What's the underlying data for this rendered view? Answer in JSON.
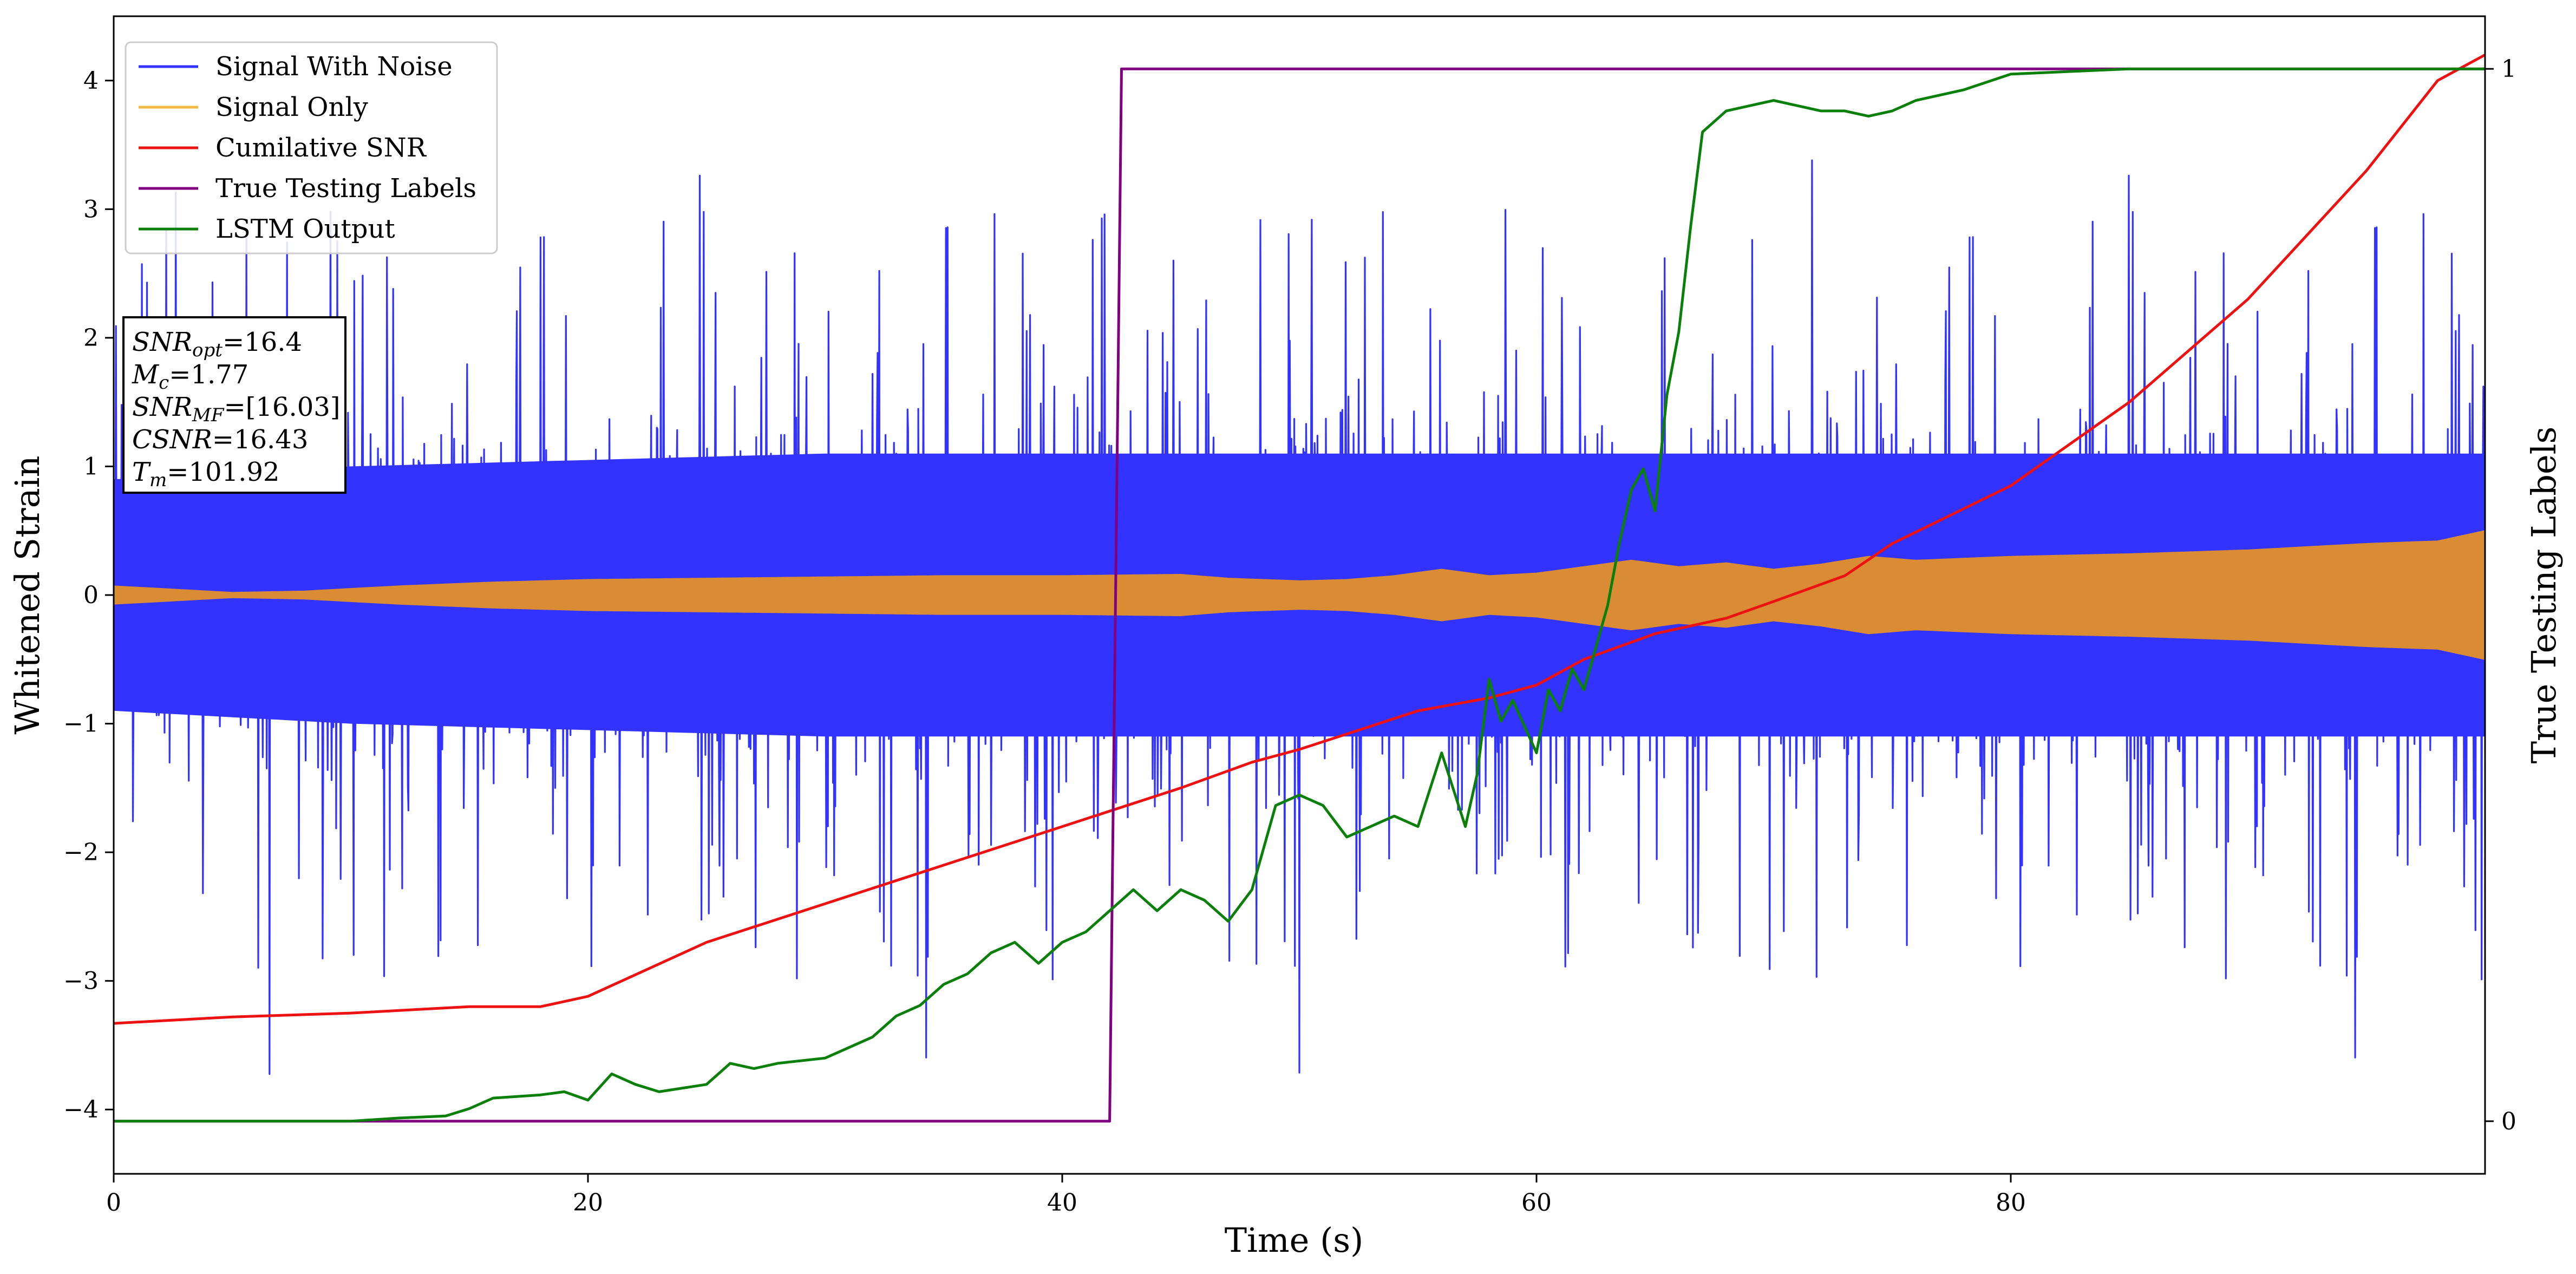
{
  "chart_data": {
    "type": "line",
    "xlabel": "Time (s)",
    "ylabel": "Whitened Strain",
    "y2label": "True Testing Labels",
    "xlim": [
      0,
      100
    ],
    "ylim": [
      -4.5,
      4.5
    ],
    "y2lim": [
      -0.05,
      1.05
    ],
    "x_ticks": [
      0,
      20,
      40,
      60,
      80
    ],
    "y_ticks": [
      -4,
      -3,
      -2,
      -1,
      0,
      1,
      2,
      3,
      4
    ],
    "y2_ticks": [
      0,
      1
    ],
    "legend_position": "upper-left",
    "colors": {
      "noise": "#3333ff",
      "signal": "#d98c33",
      "signal_legend": "#f5b841",
      "snr": "#ee1111",
      "labels": "#800080",
      "lstm": "#0a800a"
    },
    "series": [
      {
        "name": "Signal With Noise",
        "kind": "noise_band",
        "x": [
          0,
          10,
          20,
          30,
          40,
          50,
          60,
          70,
          80,
          90,
          100
        ],
        "upper_envelope": [
          2.5,
          2.8,
          2.9,
          3.0,
          3.1,
          3.1,
          3.1,
          3.1,
          3.1,
          3.0,
          3.0
        ],
        "lower_envelope": [
          -2.2,
          -2.4,
          -2.5,
          -2.6,
          -2.6,
          -2.6,
          -2.6,
          -2.6,
          -2.6,
          -2.6,
          -2.6
        ],
        "dense_band": [
          0.9,
          1.0,
          1.05,
          1.1,
          1.1,
          1.1,
          1.1,
          1.1,
          1.1,
          1.1,
          1.1
        ]
      },
      {
        "name": "Signal Only",
        "kind": "amplitude_envelope",
        "x": [
          0,
          2,
          5,
          8,
          12,
          16,
          20,
          25,
          30,
          35,
          40,
          45,
          47,
          50,
          52,
          54,
          56,
          58,
          60,
          62,
          64,
          66,
          68,
          70,
          72,
          74,
          76,
          80,
          85,
          90,
          95,
          98,
          100
        ],
        "amplitude": [
          0.07,
          0.05,
          0.02,
          0.03,
          0.07,
          0.1,
          0.12,
          0.13,
          0.14,
          0.15,
          0.15,
          0.16,
          0.13,
          0.11,
          0.12,
          0.15,
          0.2,
          0.15,
          0.17,
          0.22,
          0.27,
          0.22,
          0.25,
          0.2,
          0.24,
          0.3,
          0.27,
          0.3,
          0.32,
          0.35,
          0.4,
          0.42,
          0.5
        ]
      },
      {
        "name": "Cumilative SNR",
        "axis": "left",
        "x": [
          0,
          5,
          10,
          15,
          18,
          20,
          25,
          30,
          35,
          40,
          45,
          48,
          50,
          55,
          58,
          60,
          62,
          65,
          68,
          70,
          73,
          75,
          80,
          85,
          90,
          95,
          98,
          100
        ],
        "y": [
          -3.33,
          -3.28,
          -3.25,
          -3.2,
          -3.2,
          -3.12,
          -2.7,
          -2.4,
          -2.1,
          -1.8,
          -1.5,
          -1.3,
          -1.2,
          -0.9,
          -0.8,
          -0.7,
          -0.5,
          -0.3,
          -0.18,
          -0.05,
          0.15,
          0.4,
          0.85,
          1.5,
          2.3,
          3.3,
          4.0,
          4.2
        ]
      },
      {
        "name": "True Testing Labels",
        "axis": "right",
        "x": [
          0,
          42,
          42.5,
          100
        ],
        "y": [
          0,
          0,
          1,
          1
        ]
      },
      {
        "name": "LSTM Output",
        "axis": "right",
        "x": [
          0,
          10,
          12,
          14,
          15,
          16,
          18,
          19,
          20,
          21,
          22,
          23,
          25,
          26,
          27,
          28,
          30,
          31,
          32,
          33,
          34,
          35,
          36,
          37,
          38,
          39,
          40,
          41,
          42,
          43,
          44,
          45,
          46,
          47,
          48,
          49,
          50,
          51,
          52,
          53,
          54,
          55,
          56,
          57,
          57.5,
          58,
          58.5,
          59,
          60,
          60.5,
          61,
          61.5,
          62,
          62.5,
          63,
          63.5,
          64,
          64.5,
          65,
          65.5,
          66,
          66.5,
          67,
          68,
          69,
          70,
          71,
          72,
          73,
          74,
          75,
          76,
          78,
          80,
          85,
          90,
          95,
          100
        ],
        "y": [
          0,
          0,
          0.003,
          0.005,
          0.012,
          0.022,
          0.025,
          0.028,
          0.02,
          0.045,
          0.035,
          0.028,
          0.035,
          0.055,
          0.05,
          0.055,
          0.06,
          0.07,
          0.08,
          0.1,
          0.11,
          0.13,
          0.14,
          0.16,
          0.17,
          0.15,
          0.17,
          0.18,
          0.2,
          0.22,
          0.2,
          0.22,
          0.21,
          0.19,
          0.22,
          0.3,
          0.31,
          0.3,
          0.27,
          0.28,
          0.29,
          0.28,
          0.35,
          0.28,
          0.33,
          0.42,
          0.38,
          0.4,
          0.35,
          0.41,
          0.39,
          0.43,
          0.41,
          0.45,
          0.49,
          0.55,
          0.6,
          0.62,
          0.58,
          0.69,
          0.75,
          0.85,
          0.94,
          0.96,
          0.965,
          0.97,
          0.965,
          0.96,
          0.96,
          0.955,
          0.96,
          0.97,
          0.98,
          0.995,
          1.0,
          1.0,
          1.0,
          1.0
        ]
      }
    ],
    "annotation_lines": [
      {
        "label_html": "SNR",
        "sub": "opt",
        "value": "=16.4"
      },
      {
        "label_html": "M",
        "sub": "c",
        "value": "=1.77"
      },
      {
        "label_html": "SNR",
        "sub": "MF",
        "value": "=[16.03]"
      },
      {
        "label_html": "CSNR",
        "sub": "",
        "value": "=16.43"
      },
      {
        "label_html": "T",
        "sub": "m",
        "value": "=101.92"
      }
    ]
  }
}
